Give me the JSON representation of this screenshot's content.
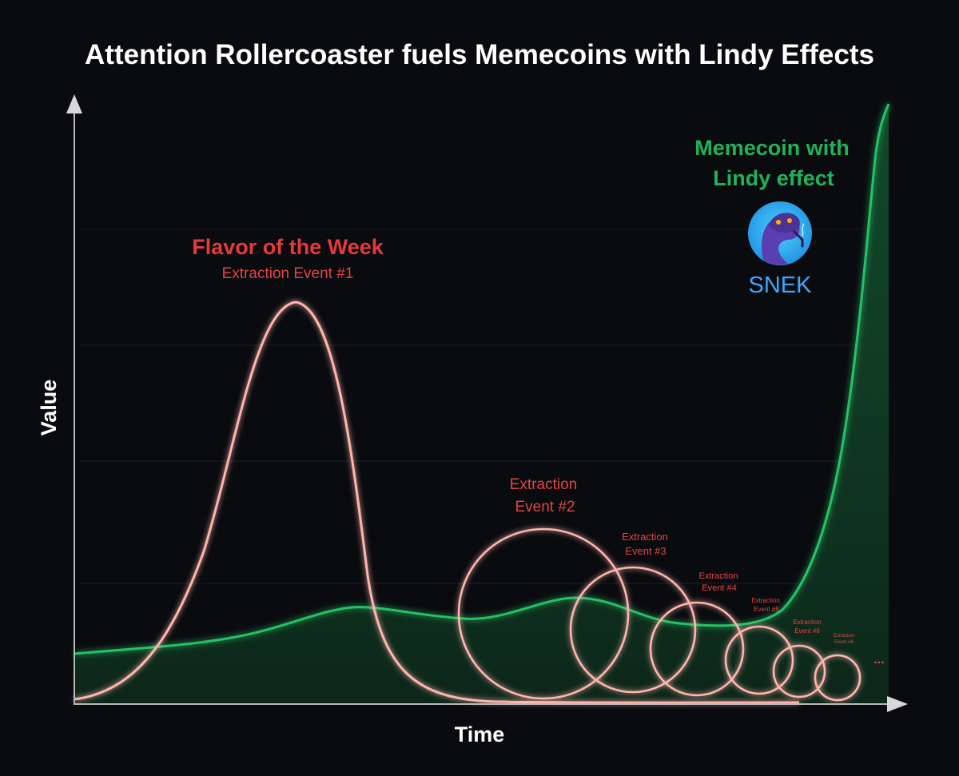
{
  "title": "Attention Rollercoaster fuels Memecoins with Lindy Effects",
  "axes": {
    "x_label": "Time",
    "y_label": "Value"
  },
  "colors": {
    "background": "#0a0b0f",
    "red": "#e63a3a",
    "pink_stroke": "#ffb0ac",
    "green": "#1fb25a",
    "green_fill": "#0f3a22",
    "snek_blue": "#3aa8ff",
    "axis": "#b9b9b9"
  },
  "annotations": {
    "flavor_title": "Flavor of the Week",
    "event_1": "Extraction Event #1",
    "event_2_line1": "Extraction",
    "event_2_line2": "Event #2",
    "event_3_line1": "Extraction",
    "event_3_line2": "Event #3",
    "event_4_line1": "Extraction",
    "event_4_line2": "Event #4",
    "event_5_line1": "Extraction",
    "event_5_line2": "Event #5",
    "event_6_line1": "Extraction",
    "event_6_line2": "Event #6",
    "event_7_line1": "Extraction",
    "event_7_line2": "Event #6",
    "ellipsis": "...",
    "memecoin_line1": "Memecoin with",
    "memecoin_line2": "Lindy effect",
    "snek_label": "SNEK",
    "snek_icon": "snake-mascot-icon"
  }
}
